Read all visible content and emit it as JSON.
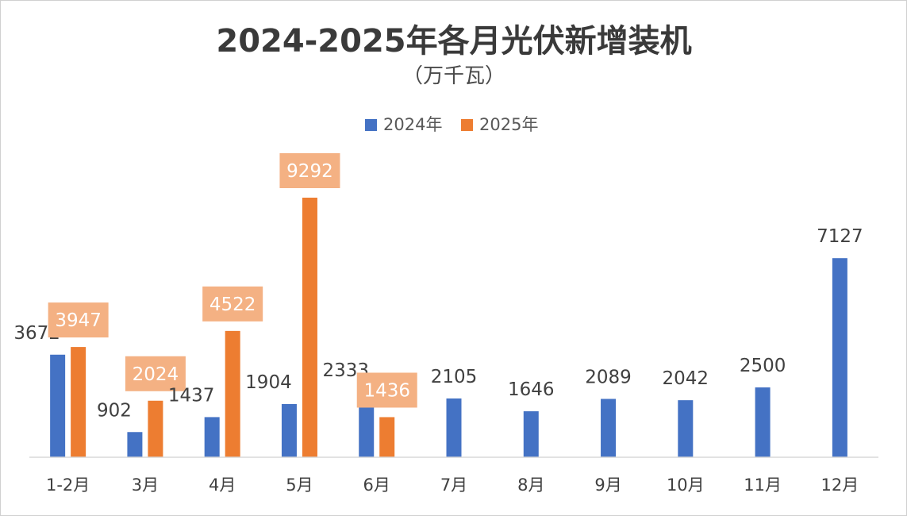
{
  "chart_data": {
    "type": "bar",
    "title": "2024-2025年各月光伏新增装机",
    "subtitle": "（万千瓦）",
    "categories": [
      "1-2月",
      "3月",
      "4月",
      "5月",
      "6月",
      "7月",
      "8月",
      "9月",
      "10月",
      "11月",
      "12月"
    ],
    "series": [
      {
        "name": "2024年",
        "color": "#4472C4",
        "values": [
          3672,
          902,
          1437,
          1904,
          2333,
          2105,
          1646,
          2089,
          2042,
          2500,
          7127
        ]
      },
      {
        "name": "2025年",
        "color": "#ED7D31",
        "label_box_color": "#F4B183",
        "values": [
          3947,
          2024,
          4522,
          9292,
          1436,
          null,
          null,
          null,
          null,
          null,
          null
        ]
      }
    ],
    "ylim": [
      0,
      9500
    ],
    "legend_position": "top-center",
    "grid": false
  }
}
